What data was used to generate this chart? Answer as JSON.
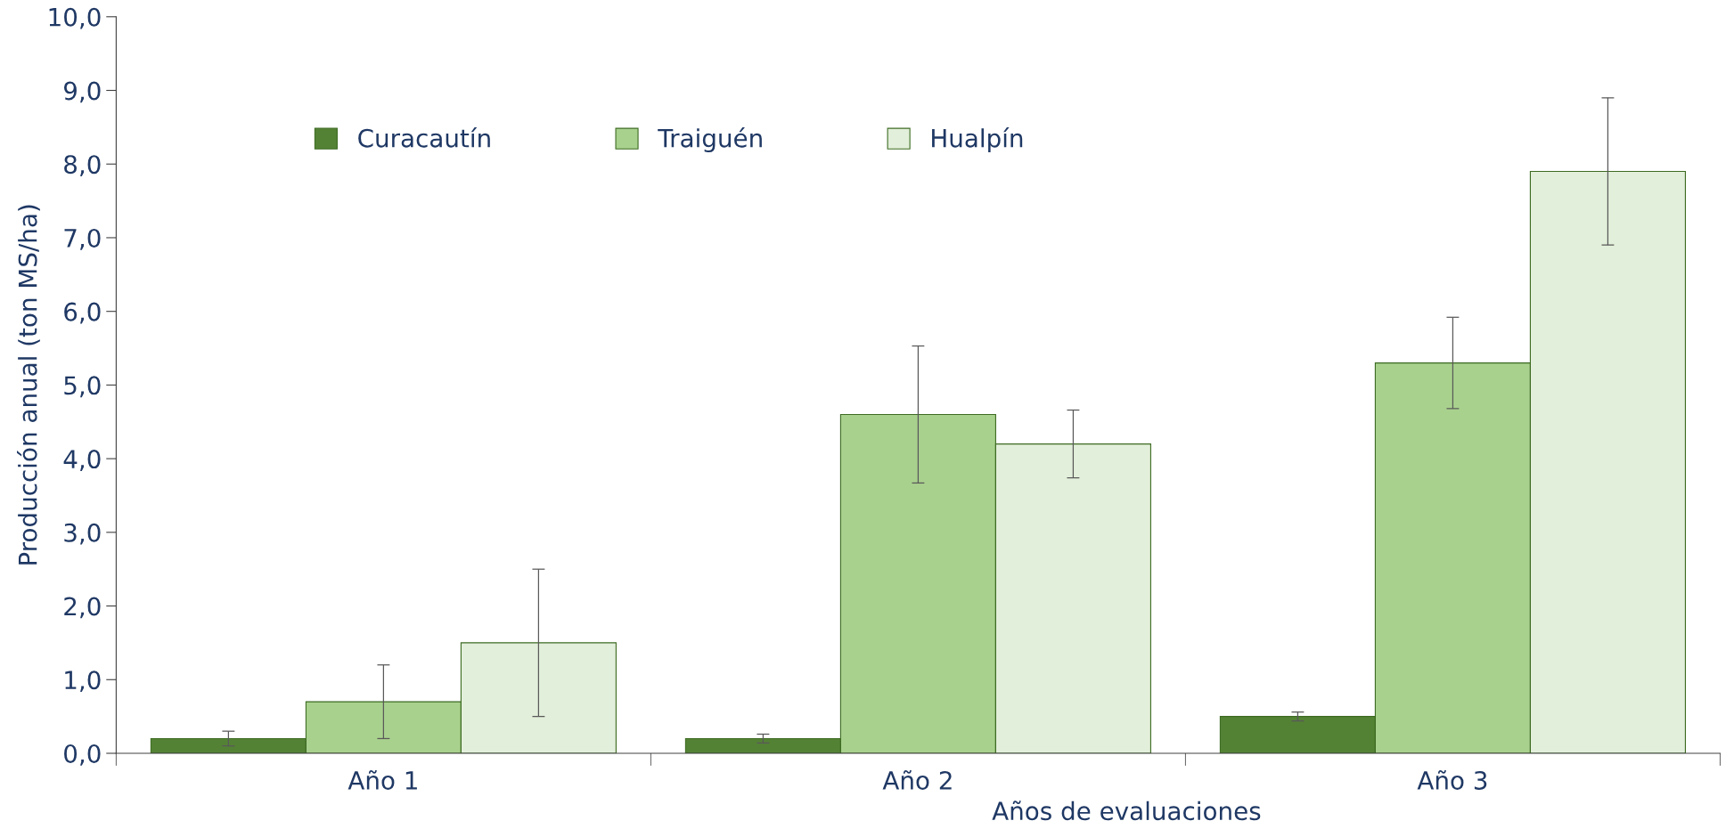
{
  "chart_data": {
    "type": "bar",
    "ylabel": "Producción anual (ton MS/ha)",
    "xlabel": "Años de evaluaciones",
    "categories": [
      "Año 1",
      "Año 2",
      "Año 3"
    ],
    "series": [
      {
        "name": "Curacautín",
        "color": "#548235",
        "values": [
          0.2,
          0.2,
          0.5
        ],
        "errors": [
          0.1,
          0.06,
          0.06
        ]
      },
      {
        "name": "Traiguén",
        "color": "#a9d18e",
        "values": [
          0.7,
          4.6,
          5.3
        ],
        "errors": [
          0.5,
          0.93,
          0.62
        ]
      },
      {
        "name": "Hualpín",
        "color": "#e2efda",
        "values": [
          1.5,
          4.2,
          7.9
        ],
        "errors": [
          1.0,
          0.46,
          1.0
        ]
      }
    ],
    "ylim": [
      0,
      10
    ],
    "yticks": [
      {
        "value": 0,
        "label": "0,0"
      },
      {
        "value": 1,
        "label": "1,0"
      },
      {
        "value": 2,
        "label": "2,0"
      },
      {
        "value": 3,
        "label": "3,0"
      },
      {
        "value": 4,
        "label": "4,0"
      },
      {
        "value": 5,
        "label": "5,0"
      },
      {
        "value": 6,
        "label": "6,0"
      },
      {
        "value": 7,
        "label": "7,0"
      },
      {
        "value": 8,
        "label": "8,0"
      },
      {
        "value": 9,
        "label": "9,0"
      },
      {
        "value": 10,
        "label": "10,0"
      }
    ],
    "grid": false,
    "legend": "top left"
  }
}
